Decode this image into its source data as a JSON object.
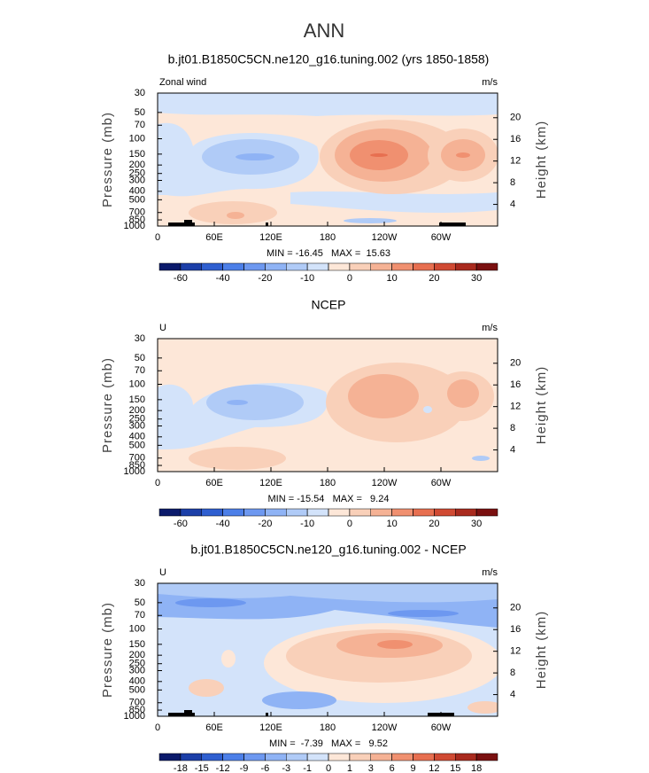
{
  "title": "ANN",
  "chart_data": [
    {
      "type": "contour",
      "title": "b.jt01.B1850C5CN.ne120_g16.tuning.002 (yrs 1850-1858)",
      "corner_label": "Zonal wind",
      "units": "m/s",
      "ylabel": "Pressure (mb)",
      "y2label": "Height (km)",
      "stats": "MIN = -16.45   MAX =  15.63",
      "xlim": [
        0,
        360
      ],
      "xticks": [
        0,
        {
          "value": 60,
          "label": "60E"
        },
        {
          "value": 120,
          "label": "120E"
        },
        180,
        {
          "value": 240,
          "label": "120W"
        },
        {
          "value": 300,
          "label": "60W"
        }
      ],
      "ylim": [
        1000,
        30
      ],
      "log_y": true,
      "yticks": [
        30,
        50,
        70,
        100,
        150,
        200,
        250,
        300,
        400,
        500,
        700,
        850,
        1000
      ],
      "y2ticks": [
        4,
        8,
        12,
        16,
        20
      ],
      "colorbar": {
        "colors": [
          "#0b1a6b",
          "#1c3fa8",
          "#2f5fd0",
          "#4c7fe8",
          "#6d98f0",
          "#8fb3f5",
          "#b0cbf7",
          "#d3e3fa",
          "#fde7d8",
          "#f9d0b9",
          "#f5b295",
          "#f09070",
          "#e76f50",
          "#d04a33",
          "#a92a1e",
          "#7a1010"
        ],
        "levels": [
          -60,
          -50,
          -40,
          -30,
          -20,
          -15,
          -10,
          -5,
          0,
          5,
          10,
          15,
          20,
          25,
          30
        ],
        "ticks": [
          -60,
          -40,
          -20,
          -10,
          0,
          10,
          20,
          30
        ]
      }
    },
    {
      "type": "contour",
      "title": "NCEP",
      "corner_label": "U",
      "units": "m/s",
      "ylabel": "Pressure (mb)",
      "y2label": "Height (km)",
      "stats": "MIN = -15.54   MAX =   9.24",
      "xlim": [
        0,
        360
      ],
      "xticks": [
        0,
        {
          "value": 60,
          "label": "60E"
        },
        {
          "value": 120,
          "label": "120E"
        },
        180,
        {
          "value": 240,
          "label": "120W"
        },
        {
          "value": 300,
          "label": "60W"
        }
      ],
      "ylim": [
        1000,
        30
      ],
      "log_y": true,
      "yticks": [
        30,
        50,
        70,
        100,
        150,
        200,
        250,
        300,
        400,
        500,
        700,
        850,
        1000
      ],
      "y2ticks": [
        4,
        8,
        12,
        16,
        20
      ],
      "colorbar": {
        "colors": [
          "#0b1a6b",
          "#1c3fa8",
          "#2f5fd0",
          "#4c7fe8",
          "#6d98f0",
          "#8fb3f5",
          "#b0cbf7",
          "#d3e3fa",
          "#fde7d8",
          "#f9d0b9",
          "#f5b295",
          "#f09070",
          "#e76f50",
          "#d04a33",
          "#a92a1e",
          "#7a1010"
        ],
        "levels": [
          -60,
          -50,
          -40,
          -30,
          -20,
          -15,
          -10,
          -5,
          0,
          5,
          10,
          15,
          20,
          25,
          30
        ],
        "ticks": [
          -60,
          -40,
          -20,
          -10,
          0,
          10,
          20,
          30
        ]
      }
    },
    {
      "type": "contour",
      "title": "b.jt01.B1850C5CN.ne120_g16.tuning.002 - NCEP",
      "corner_label": "U",
      "units": "m/s",
      "ylabel": "Pressure (mb)",
      "y2label": "Height (km)",
      "stats": "MIN =  -7.39   MAX =   9.52",
      "xlim": [
        0,
        360
      ],
      "xticks": [
        0,
        {
          "value": 60,
          "label": "60E"
        },
        {
          "value": 120,
          "label": "120E"
        },
        180,
        {
          "value": 240,
          "label": "120W"
        },
        {
          "value": 300,
          "label": "60W"
        }
      ],
      "ylim": [
        1000,
        30
      ],
      "log_y": true,
      "yticks": [
        30,
        50,
        70,
        100,
        150,
        200,
        250,
        300,
        400,
        500,
        700,
        850,
        1000
      ],
      "y2ticks": [
        4,
        8,
        12,
        16,
        20
      ],
      "colorbar": {
        "colors": [
          "#0b1a6b",
          "#1c3fa8",
          "#2f5fd0",
          "#4c7fe8",
          "#6d98f0",
          "#8fb3f5",
          "#b0cbf7",
          "#d3e3fa",
          "#fde7d8",
          "#f9d0b9",
          "#f5b295",
          "#f09070",
          "#e76f50",
          "#d04a33",
          "#a92a1e",
          "#7a1010"
        ],
        "levels": [
          -18,
          -15,
          -12,
          -9,
          -6,
          -3,
          -1,
          0,
          1,
          3,
          6,
          9,
          12,
          15,
          18
        ],
        "ticks": [
          -18,
          -15,
          -12,
          -9,
          -6,
          -3,
          -1,
          0,
          1,
          3,
          6,
          9,
          12,
          15,
          18
        ]
      }
    }
  ]
}
